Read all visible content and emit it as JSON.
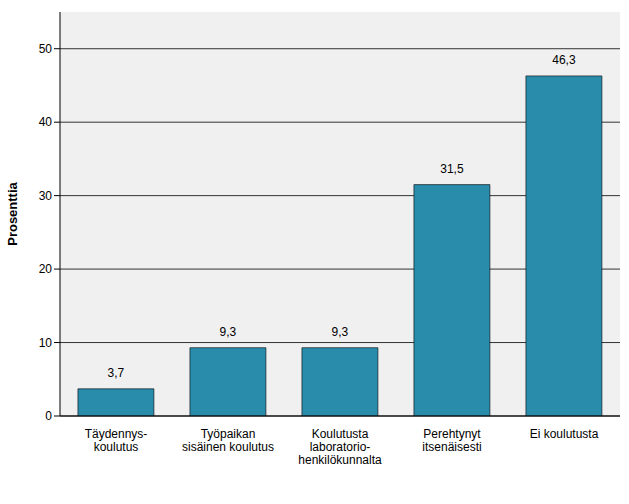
{
  "chart_data": {
    "type": "bar",
    "y_label": "Prosenttia",
    "categories": [
      "Täydennys-\nkoulutus",
      "Työpaikan\nsisäinen koulutus",
      "Koulutusta\nlaboratorio-\nhenkilökunnalta",
      "Perehtynyt\nitsenäisesti",
      "Ei koulutusta"
    ],
    "values": [
      3.7,
      9.3,
      9.3,
      31.5,
      46.3
    ],
    "value_labels": [
      "3,7",
      "9,3",
      "9,3",
      "31,5",
      "46,3"
    ],
    "data_labels": true,
    "color": "#2a8cab",
    "ylim": [
      0,
      55
    ],
    "yticks": [
      0,
      10,
      20,
      30,
      40,
      50
    ],
    "grid": true
  }
}
